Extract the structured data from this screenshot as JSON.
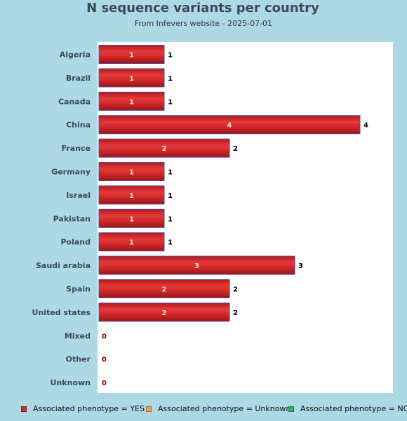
{
  "chart_data": {
    "type": "bar",
    "orientation": "horizontal",
    "title": "N sequence variants per country",
    "subtitle": "From Infevers website - 2025-07-01",
    "categories": [
      "Algeria",
      "Brazil",
      "Canada",
      "China",
      "France",
      "Germany",
      "Israel",
      "Pakistan",
      "Poland",
      "Saudi arabia",
      "Spain",
      "United states",
      "Mixed",
      "Other",
      "Unknown"
    ],
    "series": [
      {
        "name": "Associated phenotype = YES",
        "color": "#d42a2a",
        "values": [
          1,
          1,
          1,
          4,
          2,
          1,
          1,
          1,
          1,
          3,
          2,
          2,
          0,
          0,
          0
        ]
      },
      {
        "name": "Associated phenotype = Unknown",
        "color": "#f0a060",
        "values": [
          0,
          0,
          0,
          0,
          0,
          0,
          0,
          0,
          0,
          0,
          0,
          0,
          0,
          0,
          0
        ]
      },
      {
        "name": "Associated phenotype = NO",
        "color": "#2ab060",
        "values": [
          0,
          0,
          0,
          0,
          0,
          0,
          0,
          0,
          0,
          0,
          0,
          0,
          0,
          0,
          0
        ]
      }
    ],
    "totals": [
      1,
      1,
      1,
      4,
      2,
      1,
      1,
      1,
      1,
      3,
      2,
      2,
      0,
      0,
      0
    ],
    "xlim": [
      0,
      4.5
    ],
    "grid": false,
    "legend_position": "bottom"
  },
  "colors": {
    "background": "#add8e6",
    "plot_background": "#ffffff",
    "bar_fill": "#d42a2a",
    "bar_stroke": "#5a4a9a",
    "zero_label": "#8b0000"
  }
}
